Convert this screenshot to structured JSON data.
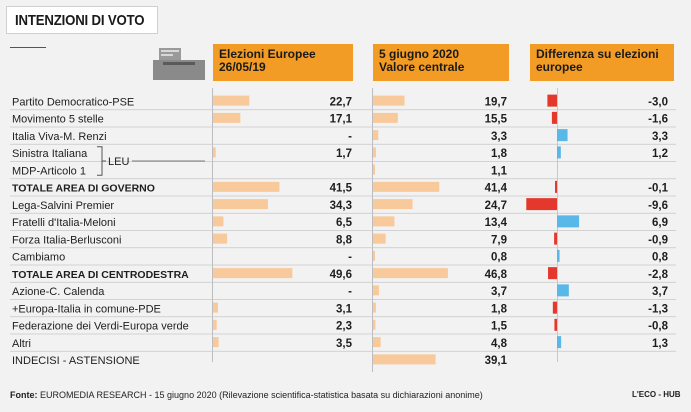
{
  "title": "INTENZIONI DI VOTO",
  "columns": {
    "col1": {
      "line1": "Elezioni Europee",
      "line2": "26/05/19"
    },
    "col2": {
      "line1": "5 giugno 2020",
      "line2": "Valore centrale"
    },
    "col3": {
      "line1": "Differenza su elezioni",
      "line2": "europee"
    }
  },
  "leu_label": "LEU",
  "footer": {
    "source_label": "Fonte:",
    "source_text": "EUROMEDIA RESEARCH - 15 giugno 2020 (Rilevazione scientifica-statistica basata su dichiarazioni anonime)",
    "brand": "L'ECO - HUB"
  },
  "colors": {
    "header": "#f39c25",
    "bar": "#f8c99a",
    "negative": "#e5382d",
    "positive": "#5ab8e8"
  },
  "chart_data": {
    "type": "table",
    "bar_scale_max": 50,
    "diff_scale_max": 10,
    "rows": [
      {
        "party": "Partito Democratico-PSE",
        "eu2019": 22.7,
        "eu2019_label": "22,7",
        "jun2020": 19.7,
        "jun2020_label": "19,7",
        "diff": -3.0,
        "diff_label": "-3,0",
        "bold": false
      },
      {
        "party": "Movimento 5 stelle",
        "eu2019": 17.1,
        "eu2019_label": "17,1",
        "jun2020": 15.5,
        "jun2020_label": "15,5",
        "diff": -1.6,
        "diff_label": "-1,6",
        "bold": false
      },
      {
        "party": "Italia Viva-M. Renzi",
        "eu2019": null,
        "eu2019_label": "-",
        "jun2020": 3.3,
        "jun2020_label": "3,3",
        "diff": 3.3,
        "diff_label": "3,3",
        "bold": false
      },
      {
        "party": "Sinistra Italiana",
        "eu2019": 1.7,
        "eu2019_label": "1,7",
        "jun2020": 1.8,
        "jun2020_label": "1,8",
        "diff": 1.2,
        "diff_label": "1,2",
        "bold": false,
        "group": "LEU"
      },
      {
        "party": "MDP-Articolo 1",
        "eu2019": null,
        "eu2019_label": "",
        "jun2020": 1.1,
        "jun2020_label": "1,1",
        "diff": null,
        "diff_label": "",
        "bold": false,
        "group": "LEU"
      },
      {
        "party": "TOTALE AREA DI GOVERNO",
        "eu2019": 41.5,
        "eu2019_label": "41,5",
        "jun2020": 41.4,
        "jun2020_label": "41,4",
        "diff": -0.1,
        "diff_label": "-0,1",
        "bold": true
      },
      {
        "party": "Lega-Salvini Premier",
        "eu2019": 34.3,
        "eu2019_label": "34,3",
        "jun2020": 24.7,
        "jun2020_label": "24,7",
        "diff": -9.6,
        "diff_label": "-9,6",
        "bold": false
      },
      {
        "party": "Fratelli d'Italia-Meloni",
        "eu2019": 6.5,
        "eu2019_label": "6,5",
        "jun2020": 13.4,
        "jun2020_label": "13,4",
        "diff": 6.9,
        "diff_label": "6,9",
        "bold": false
      },
      {
        "party": "Forza Italia-Berlusconi",
        "eu2019": 8.8,
        "eu2019_label": "8,8",
        "jun2020": 7.9,
        "jun2020_label": "7,9",
        "diff": -0.9,
        "diff_label": "-0,9",
        "bold": false
      },
      {
        "party": "Cambiamo",
        "eu2019": null,
        "eu2019_label": "-",
        "jun2020": 0.8,
        "jun2020_label": "0,8",
        "diff": 0.8,
        "diff_label": "0,8",
        "bold": false
      },
      {
        "party": "TOTALE AREA DI CENTRODESTRA",
        "eu2019": 49.6,
        "eu2019_label": "49,6",
        "jun2020": 46.8,
        "jun2020_label": "46,8",
        "diff": -2.8,
        "diff_label": "-2,8",
        "bold": true
      },
      {
        "party": "Azione-C. Calenda",
        "eu2019": null,
        "eu2019_label": "-",
        "jun2020": 3.7,
        "jun2020_label": "3,7",
        "diff": 3.7,
        "diff_label": "3,7",
        "bold": false
      },
      {
        "party": "+Europa-Italia in comune-PDE",
        "eu2019": 3.1,
        "eu2019_label": "3,1",
        "jun2020": 1.8,
        "jun2020_label": "1,8",
        "diff": -1.3,
        "diff_label": "-1,3",
        "bold": false
      },
      {
        "party": "Federazione dei Verdi-Europa verde",
        "eu2019": 2.3,
        "eu2019_label": "2,3",
        "jun2020": 1.5,
        "jun2020_label": "1,5",
        "diff": -0.8,
        "diff_label": "-0,8",
        "bold": false
      },
      {
        "party": "Altri",
        "eu2019": 3.5,
        "eu2019_label": "3,5",
        "jun2020": 4.8,
        "jun2020_label": "4,8",
        "diff": 1.3,
        "diff_label": "1,3",
        "bold": false
      },
      {
        "party": "INDECISI - ASTENSIONE",
        "eu2019": null,
        "eu2019_label": "",
        "jun2020": 39.1,
        "jun2020_label": "39,1",
        "diff": null,
        "diff_label": "",
        "bold": false
      }
    ]
  }
}
